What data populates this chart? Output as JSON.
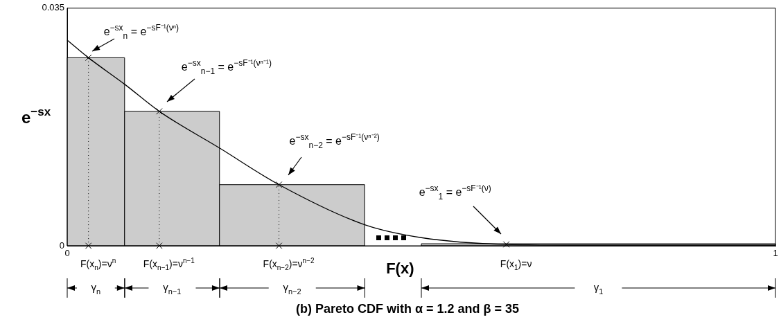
{
  "chart_data": {
    "type": "histogram",
    "title": "(b) Pareto CDF with α = 1.2 and β = 35",
    "xlabel": "F(x)",
    "ylabel": "e$^{−sx}$",
    "xlim": [
      0,
      1
    ],
    "ylim": [
      0,
      0.035
    ],
    "xticks": [
      0,
      1
    ],
    "yticks": [
      0,
      0.035
    ],
    "series": [
      {
        "color": "#cccccc",
        "bins": [
          0,
          0.081,
          0.215,
          0.42,
          0.5,
          1
        ],
        "values": [
          0.0277,
          0.0198,
          0.009,
          null,
          0.0003
        ]
      },
      {
        "type": "line",
        "color": "#000000",
        "x": [
          0,
          0.03,
          0.081,
          0.13,
          0.215,
          0.299,
          0.42,
          0.5,
          0.62,
          0.731,
          1
        ],
        "values": [
          0.0303,
          0.0277,
          0.0238,
          0.0198,
          0.0144,
          0.009,
          0.0031,
          0.0012,
          0.0002,
          0.0001,
          0.0001
        ]
      },
      {
        "type": "line",
        "color": "#000000",
        "line_style": "dotted",
        "x": [
          0.03,
          0.03
        ],
        "values": [
          0,
          0.0277
        ]
      },
      {
        "type": "line",
        "color": "#000000",
        "line_style": "dotted",
        "x": [
          0.13,
          0.13
        ],
        "values": [
          0,
          0.0198
        ]
      },
      {
        "type": "line",
        "color": "#000000",
        "line_style": "dotted",
        "x": [
          0.299,
          0.299
        ],
        "values": [
          0,
          0.009
        ]
      },
      {
        "type": "scatter",
        "color": "#000000",
        "marker": "cross",
        "x": [
          0.03,
          0.13,
          0.299,
          0.62,
          0.03,
          0.13,
          0.299
        ],
        "values": [
          0.0277,
          0.0198,
          0.009,
          0.0002,
          0,
          0,
          0
        ]
      }
    ],
    "annotations": [
      "e$^{−sx}$$_{n}$ = e$^{−sF⁻¹(νⁿ)}$",
      "e$^{−sx}$$_{n−1}$ = e$^{−sF⁻¹(νⁿ⁻¹)}$",
      "e$^{−sx}$$_{n−2}$ = e$^{−sF⁻¹(νⁿ⁻²)}$",
      "e$^{−sx}$$_{1}$ = e$^{−sF⁻¹(ν)}$",
      {
        "text": "F(x$_{n}$)=ν$^{n}$",
        "x": 0.03,
        "y": 0
      },
      {
        "text": "F(x$_{n−1}$)=ν$^{n−1}$",
        "x": 0.13,
        "y": 0
      },
      {
        "text": "F(x$_{n−2}$)=ν$^{n−2}$",
        "x": 0.299,
        "y": 0
      },
      {
        "text": "F(x$_{1}$)=ν",
        "x": 0.62,
        "y": 0
      },
      "γ$_{n}$",
      "γ$_{n−1}$",
      "γ$_{n−2}$",
      "γ$_{1}$"
    ]
  }
}
